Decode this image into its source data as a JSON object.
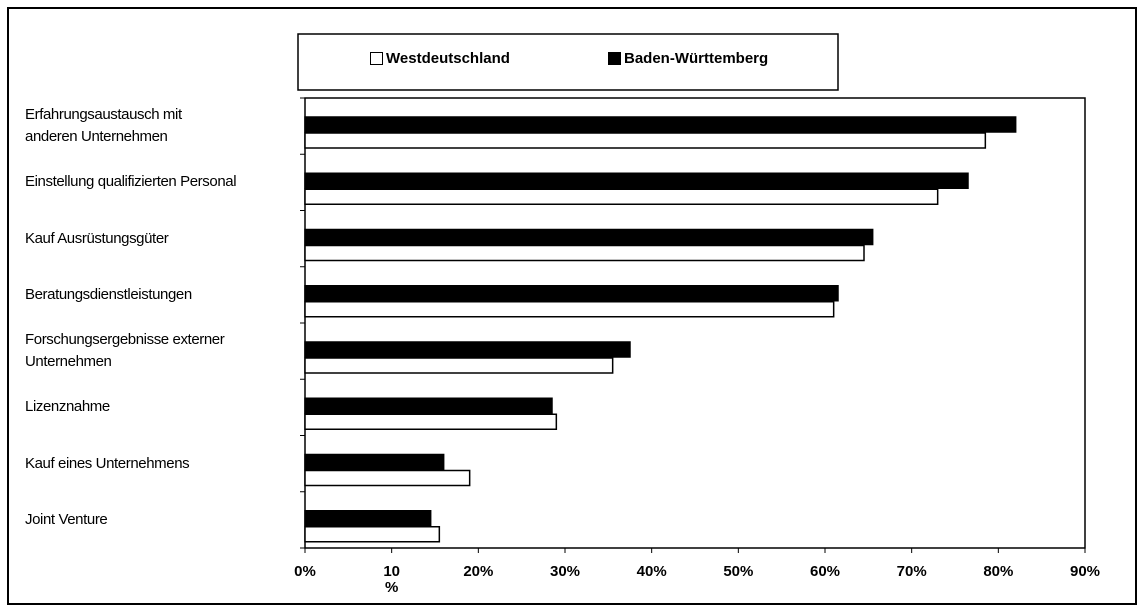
{
  "chart_data": {
    "type": "barh",
    "categories": [
      "Erfahrungsaustausch mit\nanderen Unternehmen",
      "Einstellung qualifizierten Personal",
      "Kauf Ausrüstungsgüter",
      "Beratungsdienstleistungen",
      "Forschungsergebnisse externer\nUnternehmen",
      "Lizenznahme",
      "Kauf eines Unternehmens",
      "Joint Venture"
    ],
    "series": [
      {
        "name": "Westdeutschland",
        "color": "#ffffff",
        "values": [
          78.5,
          73,
          64.5,
          61,
          35.5,
          29,
          19,
          15.5
        ]
      },
      {
        "name": "Baden-Württemberg",
        "color": "#000000",
        "values": [
          82,
          76.5,
          65.5,
          61.5,
          37.5,
          28.5,
          16,
          14.5
        ]
      }
    ],
    "xlim": [
      0,
      90
    ],
    "xticks": [
      {
        "value": 0,
        "label": "0%"
      },
      {
        "value": 10,
        "label": "10\n%"
      },
      {
        "value": 20,
        "label": "20%"
      },
      {
        "value": 30,
        "label": "30%"
      },
      {
        "value": 40,
        "label": "40%"
      },
      {
        "value": 50,
        "label": "50%"
      },
      {
        "value": 60,
        "label": "60%"
      },
      {
        "value": 70,
        "label": "70%"
      },
      {
        "value": 80,
        "label": "80%"
      },
      {
        "value": 90,
        "label": "90%"
      }
    ]
  }
}
